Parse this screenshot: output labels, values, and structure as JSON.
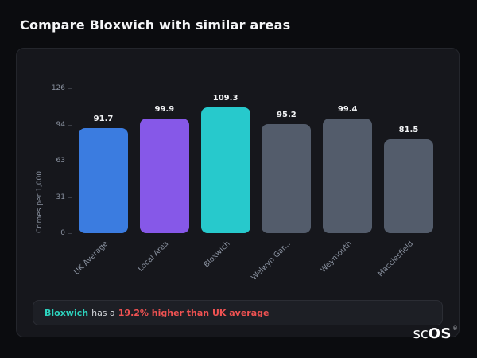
{
  "page": {
    "title": "Compare Bloxwich with similar areas"
  },
  "chart_data": {
    "type": "bar",
    "title": "",
    "categories": [
      "UK Average",
      "Local Area",
      "Bloxwich",
      "Welwyn Gar...",
      "Weymouth",
      "Macclesfield"
    ],
    "values": [
      91.7,
      99.9,
      109.3,
      95.2,
      99.4,
      81.5
    ],
    "bar_colors": [
      "#3b7ce0",
      "#8658e8",
      "#27c9cc",
      "#535c6b",
      "#535c6b",
      "#535c6b"
    ],
    "xlabel": "",
    "ylabel": "Crimes per 1,000",
    "yticks": [
      0,
      31,
      63,
      94,
      126
    ],
    "ylim": [
      0,
      126
    ],
    "grid": false,
    "legend": "none",
    "value_labels": [
      "91.7",
      "99.9",
      "109.3",
      "95.2",
      "99.4",
      "81.5"
    ]
  },
  "footer": {
    "area": "Bloxwich",
    "middle": "has a",
    "stat": "19.2% higher than UK average",
    "area_color": "#2dd4bf",
    "stat_color": "#f05252"
  },
  "logo": {
    "text_left": "sc",
    "text_right": "OS",
    "registered": "®"
  }
}
